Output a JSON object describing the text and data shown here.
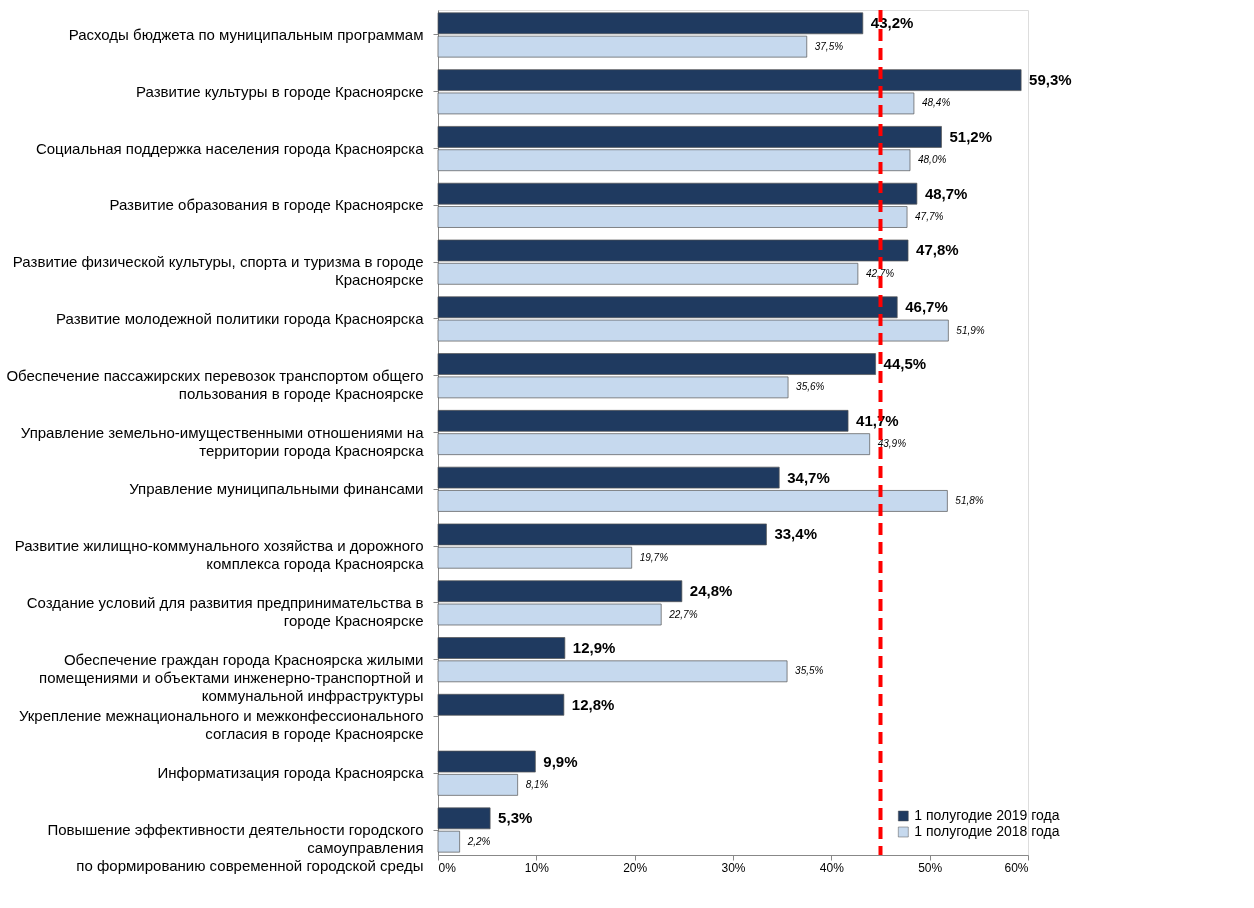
{
  "chart_data": {
    "type": "bar",
    "orientation": "horizontal",
    "categories": [
      "Расходы бюджета по муниципальным программам",
      "Развитие культуры  в городе Красноярске",
      "Социальная поддержка населения города Красноярска",
      "Развитие образования в городе Красноярске",
      "Развитие физической культуры, спорта и туризма в городе\nКрасноярске",
      "Развитие молодежной политики города Красноярска",
      "Обеспечение пассажирских перевозок транспортом общего\nпользования в городе Красноярске",
      "Управление земельно-имущественными отношениями на\nтерритории города Красноярска",
      "Управление муниципальными финансами",
      "Развитие жилищно-коммунального хозяйства и дорожного\nкомплекса города Красноярска",
      "Создание условий для развития предпринимательства в\nгороде Красноярске",
      "Обеспечение граждан города Красноярска жилыми\nпомещениями и объектами инженерно-транспортной и\nкоммунальной инфраструктуры",
      "Укрепление межнационального и межконфессионального\nсогласия в  городе Красноярске",
      "Информатизация города Красноярска",
      "Повышение эффективности  деятельности  городского\nсамоуправления\nпо формированию современной городской среды"
    ],
    "series": [
      {
        "name": "1 полугодие  2019 года",
        "color": "#1f3a60",
        "values": [
          43.2,
          59.3,
          51.2,
          48.7,
          47.8,
          46.7,
          44.5,
          41.7,
          34.7,
          33.4,
          24.8,
          12.9,
          12.8,
          9.9,
          5.3
        ],
        "value_labels": [
          "43,2%",
          "59,3%",
          "51,2%",
          "48,7%",
          "47,8%",
          "46,7%",
          "44,5%",
          "41,7%",
          "34,7%",
          "33,4%",
          "24,8%",
          "12,9%",
          "12,8%",
          "9,9%",
          "5,3%"
        ]
      },
      {
        "name": "1 полугодие  2018 года",
        "color": "#c6d9ee",
        "values": [
          37.5,
          48.4,
          48.0,
          47.7,
          42.7,
          51.9,
          35.6,
          43.9,
          51.8,
          19.7,
          22.7,
          35.5,
          null,
          8.1,
          2.2
        ],
        "value_labels": [
          "37,5%",
          "48,4%",
          "48,0%",
          "47,7%",
          "42,7%",
          "51,9%",
          "35,6%",
          "43,9%",
          "51,8%",
          "19,7%",
          "22,7%",
          "35,5%",
          null,
          "8,1%",
          "2,2%"
        ]
      }
    ],
    "xlim": [
      0,
      60
    ],
    "xticks": [
      {
        "value": 0,
        "label": "0%"
      },
      {
        "value": 10,
        "label": "10%"
      },
      {
        "value": 20,
        "label": "20%"
      },
      {
        "value": 30,
        "label": "30%"
      },
      {
        "value": 40,
        "label": "40%"
      },
      {
        "value": 50,
        "label": "50%"
      },
      {
        "value": 60,
        "label": "60%"
      }
    ],
    "ref_lines": [
      {
        "axis": "x",
        "value": 45,
        "color": "#ff0000",
        "line_style": "dashed"
      }
    ],
    "grid": false,
    "legend": "bottom right"
  }
}
